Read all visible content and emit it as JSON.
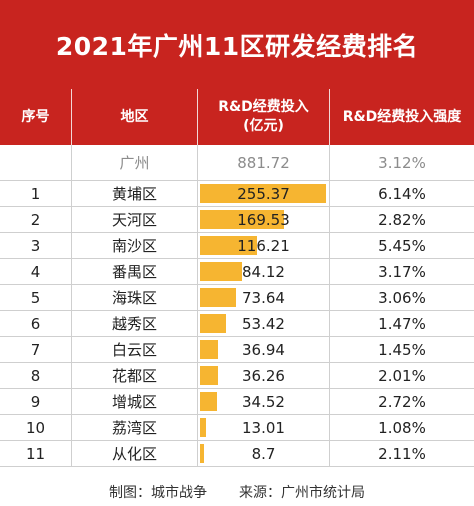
{
  "title": "2021年广州11区研发经费排名",
  "headers": {
    "rank": "序号",
    "district": "地区",
    "investment": "R&D经费投入",
    "investment_unit": "(亿元)",
    "intensity": "R&D经费投入强度"
  },
  "total": {
    "district": "广州",
    "investment": "881.72",
    "intensity": "3.12%"
  },
  "rows": [
    {
      "rank": "1",
      "district": "黄埔区",
      "investment": "255.37",
      "intensity": "6.14%"
    },
    {
      "rank": "2",
      "district": "天河区",
      "investment": "169.53",
      "intensity": "2.82%"
    },
    {
      "rank": "3",
      "district": "南沙区",
      "investment": "116.21",
      "intensity": "5.45%"
    },
    {
      "rank": "4",
      "district": "番禺区",
      "investment": "84.12",
      "intensity": "3.17%"
    },
    {
      "rank": "5",
      "district": "海珠区",
      "investment": "73.64",
      "intensity": "3.06%"
    },
    {
      "rank": "6",
      "district": "越秀区",
      "investment": "53.42",
      "intensity": "1.47%"
    },
    {
      "rank": "7",
      "district": "白云区",
      "investment": "36.94",
      "intensity": "1.45%"
    },
    {
      "rank": "8",
      "district": "花都区",
      "investment": "36.26",
      "intensity": "2.01%"
    },
    {
      "rank": "9",
      "district": "增城区",
      "investment": "34.52",
      "intensity": "2.72%"
    },
    {
      "rank": "10",
      "district": "荔湾区",
      "investment": "13.01",
      "intensity": "1.08%"
    },
    {
      "rank": "11",
      "district": "从化区",
      "investment": "8.7",
      "intensity": "2.11%"
    }
  ],
  "bar_max": 255.37,
  "footer": {
    "maker": "制图：城市战争",
    "source": "来源：广州市统计局"
  },
  "colors": {
    "header_bg": "#c8241f",
    "bar": "#f6b531",
    "total_text": "#8c8c8c"
  }
}
